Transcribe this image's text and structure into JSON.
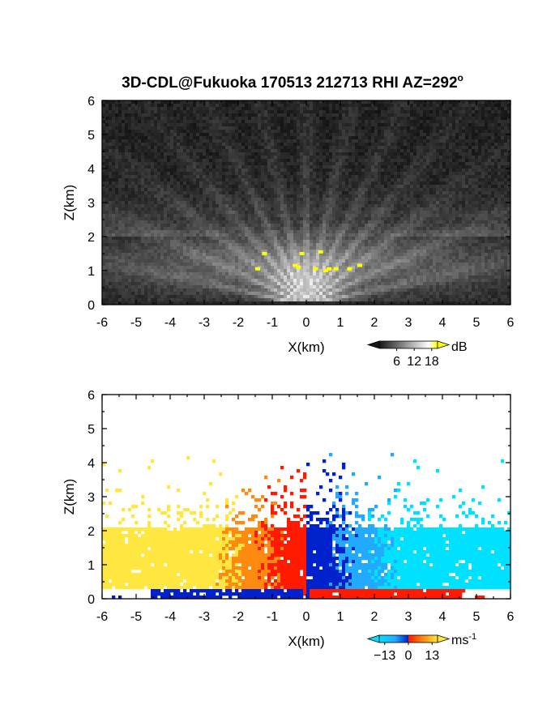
{
  "chart_data": [
    {
      "type": "heatmap",
      "panel": "top",
      "title": "3D-CDL@Fukuoka 170513 212713 RHI AZ=292",
      "title_superscript": "o",
      "xlabel": "X(km)",
      "ylabel": "Z(km)",
      "xlim": [
        -6,
        6
      ],
      "ylim": [
        0,
        6
      ],
      "x_ticks": [
        "-6",
        "-5",
        "-4",
        "-3",
        "-2",
        "-1",
        "0",
        "1",
        "2",
        "3",
        "4",
        "5",
        "6"
      ],
      "y_ticks": [
        "0",
        "1",
        "2",
        "3",
        "4",
        "5",
        "6"
      ],
      "field": "backscatter intensity (grayscale)",
      "layer_top_km": 2.0,
      "colorbar": {
        "unit": "dB",
        "ticks": [
          "6",
          "12",
          "18"
        ],
        "range": [
          0,
          20
        ]
      },
      "colors": {
        "low": "#161616",
        "high": "#ffffff",
        "saturated": "#ffff00"
      }
    },
    {
      "type": "heatmap",
      "panel": "bottom",
      "xlabel": "X(km)",
      "ylabel": "Z(km)",
      "xlim": [
        -6,
        6
      ],
      "ylim": [
        0,
        6
      ],
      "x_ticks": [
        "-6",
        "-5",
        "-4",
        "-3",
        "-2",
        "-1",
        "0",
        "1",
        "2",
        "3",
        "4",
        "5",
        "6"
      ],
      "y_ticks": [
        "0",
        "1",
        "2",
        "3",
        "4",
        "5",
        "6"
      ],
      "field": "radial velocity",
      "colorbar": {
        "unit": "ms",
        "unit_exp": "-1",
        "ticks": [
          "−13",
          "0",
          "13"
        ],
        "range": [
          -16,
          16
        ]
      },
      "colors": {
        "neg_max": "#0022cc",
        "neg_mid": "#22aaff",
        "neg_low": "#00e0ff",
        "pos_low": "#ff1a00",
        "pos_mid": "#ff8a10",
        "pos_max": "#ffe640"
      }
    }
  ]
}
